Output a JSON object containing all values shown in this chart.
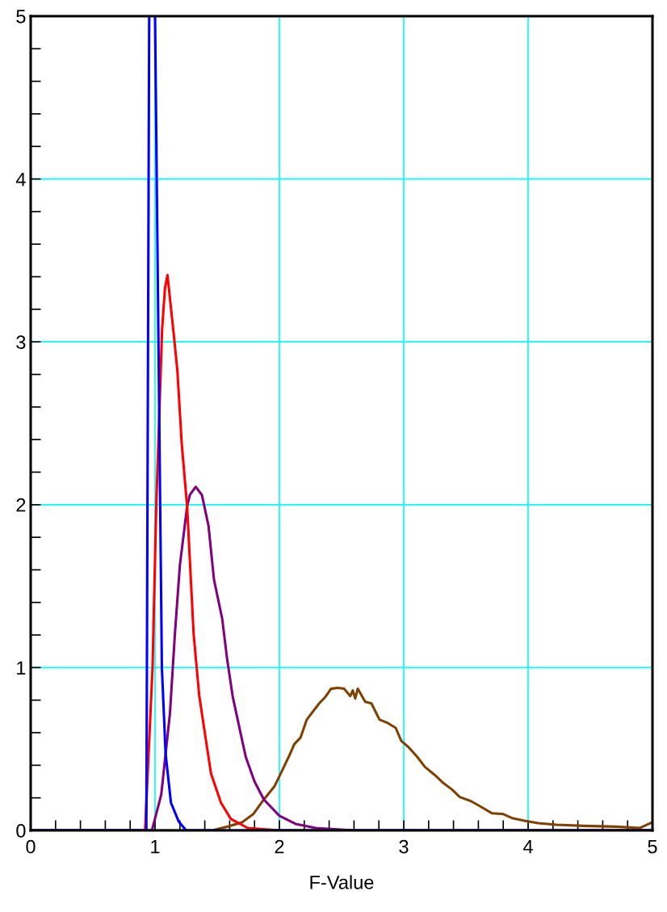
{
  "chart_data": {
    "type": "line",
    "xlabel": "F-Value",
    "xlim": [
      0,
      5
    ],
    "ylim": [
      0,
      5
    ],
    "xticks": [
      0,
      {
        "value": 0.2,
        "label": null
      },
      {
        "value": 0.4,
        "label": null
      },
      {
        "value": 0.6,
        "label": null
      },
      {
        "value": 0.8,
        "label": null
      },
      1,
      {
        "value": 1.2,
        "label": null
      },
      {
        "value": 1.4,
        "label": null
      },
      {
        "value": 1.6,
        "label": null
      },
      {
        "value": 1.8,
        "label": null
      },
      2,
      {
        "value": 2.2,
        "label": null
      },
      {
        "value": 2.4,
        "label": null
      },
      {
        "value": 2.6,
        "label": null
      },
      {
        "value": 2.8,
        "label": null
      },
      3,
      {
        "value": 3.2,
        "label": null
      },
      {
        "value": 3.4,
        "label": null
      },
      {
        "value": 3.6,
        "label": null
      },
      {
        "value": 3.8,
        "label": null
      },
      4,
      {
        "value": 4.2,
        "label": null
      },
      {
        "value": 4.4,
        "label": null
      },
      {
        "value": 4.6,
        "label": null
      },
      {
        "value": 4.8,
        "label": null
      },
      5
    ],
    "yticks": [
      0,
      {
        "value": 0.2,
        "label": null
      },
      {
        "value": 0.4,
        "label": null
      },
      {
        "value": 0.6,
        "label": null
      },
      {
        "value": 0.8,
        "label": null
      },
      1,
      {
        "value": 1.2,
        "label": null
      },
      {
        "value": 1.4,
        "label": null
      },
      {
        "value": 1.6,
        "label": null
      },
      {
        "value": 1.8,
        "label": null
      },
      2,
      {
        "value": 2.2,
        "label": null
      },
      {
        "value": 2.4,
        "label": null
      },
      {
        "value": 2.6,
        "label": null
      },
      {
        "value": 2.8,
        "label": null
      },
      3,
      {
        "value": 3.2,
        "label": null
      },
      {
        "value": 3.4,
        "label": null
      },
      {
        "value": 3.6,
        "label": null
      },
      {
        "value": 3.8,
        "label": null
      },
      4,
      {
        "value": 4.2,
        "label": null
      },
      {
        "value": 4.4,
        "label": null
      },
      {
        "value": 4.6,
        "label": null
      },
      {
        "value": 4.8,
        "label": null
      },
      5
    ],
    "grid": true,
    "marker": "none",
    "line_style": "solid",
    "series": [
      {
        "color": "#804000",
        "x": [
          0,
          1.46,
          1.59,
          1.7,
          1.79,
          1.875,
          1.96,
          2.03,
          2.08,
          2.12,
          2.17,
          2.22,
          2.32,
          2.37,
          2.415,
          2.47,
          2.52,
          2.57,
          2.59,
          2.61,
          2.63,
          2.69,
          2.74,
          2.805,
          2.87,
          2.935,
          2.98,
          3.04,
          3.11,
          3.17,
          3.25,
          3.32,
          3.39,
          3.45,
          3.54,
          3.61,
          3.71,
          3.8,
          3.87,
          3.97,
          4.08,
          4.23,
          4.45,
          4.71,
          4.9,
          5.0
        ],
        "values": [
          0,
          0,
          0.025,
          0.05,
          0.1,
          0.19,
          0.27,
          0.38,
          0.46,
          0.53,
          0.57,
          0.68,
          0.78,
          0.82,
          0.87,
          0.875,
          0.87,
          0.825,
          0.86,
          0.81,
          0.87,
          0.79,
          0.78,
          0.68,
          0.66,
          0.63,
          0.55,
          0.51,
          0.45,
          0.39,
          0.34,
          0.29,
          0.25,
          0.205,
          0.18,
          0.15,
          0.105,
          0.1,
          0.076,
          0.06,
          0.045,
          0.035,
          0.028,
          0.023,
          0.015,
          0.05
        ]
      },
      {
        "color": "#800080",
        "x": [
          0,
          0.975,
          1.05,
          1.12,
          1.16,
          1.2,
          1.258,
          1.28,
          1.327,
          1.377,
          1.43,
          1.474,
          1.54,
          1.58,
          1.625,
          1.69,
          1.73,
          1.8,
          1.875,
          2.0,
          2.13,
          2.29,
          2.6,
          5.0
        ],
        "values": [
          0,
          0,
          0.22,
          0.72,
          1.21,
          1.63,
          1.99,
          2.06,
          2.11,
          2.06,
          1.87,
          1.54,
          1.3,
          1.05,
          0.82,
          0.59,
          0.45,
          0.3,
          0.19,
          0.09,
          0.04,
          0.015,
          0,
          0
        ]
      },
      {
        "color": "#ff0000",
        "x": [
          0,
          0.92,
          0.98,
          1.01,
          1.057,
          1.08,
          1.1,
          1.15,
          1.18,
          1.215,
          1.258,
          1.31,
          1.355,
          1.41,
          1.45,
          1.53,
          1.61,
          1.745,
          2.0,
          5.0
        ],
        "values": [
          0,
          0,
          1.0,
          2.0,
          3.08,
          3.33,
          3.41,
          3.05,
          2.82,
          2.37,
          1.99,
          1.21,
          0.83,
          0.55,
          0.35,
          0.17,
          0.07,
          0.015,
          0,
          0
        ]
      },
      {
        "color": "#0000ff",
        "x": [
          0,
          0.9,
          0.93,
          0.953,
          0.975,
          1.0,
          1.055,
          1.085,
          1.128,
          1.19,
          1.25,
          5.0
        ],
        "values": [
          0,
          0,
          0,
          5,
          null,
          5,
          1.0,
          0.47,
          0.17,
          0.055,
          0,
          0
        ]
      }
    ]
  }
}
